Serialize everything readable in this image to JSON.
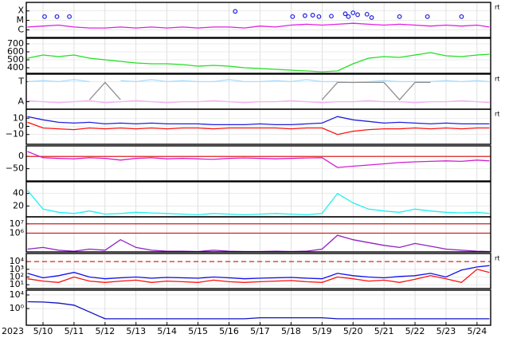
{
  "chart_data": {
    "type": "line",
    "x_label": "2023",
    "xlim": [
      9.46,
      24.44
    ],
    "xticks": [
      {
        "value": 10,
        "label": "5/10"
      },
      {
        "value": 11,
        "label": "5/11"
      },
      {
        "value": 12,
        "label": "5/12"
      },
      {
        "value": 13,
        "label": "5/13"
      },
      {
        "value": 14,
        "label": "5/14"
      },
      {
        "value": 15,
        "label": "5/15"
      },
      {
        "value": 16,
        "label": "5/16"
      },
      {
        "value": 17,
        "label": "5/17"
      },
      {
        "value": 18,
        "label": "5/18"
      },
      {
        "value": 19,
        "label": "5/19"
      },
      {
        "value": 20,
        "label": "5/20"
      },
      {
        "value": 21,
        "label": "5/21"
      },
      {
        "value": 22,
        "label": "5/22"
      },
      {
        "value": 23,
        "label": "5/23"
      },
      {
        "value": 24,
        "label": "5/24"
      }
    ],
    "grid": true,
    "x": [
      9.5,
      10,
      10.5,
      11,
      11.5,
      12,
      12.5,
      13,
      13.5,
      14,
      14.5,
      15,
      15.5,
      16,
      16.5,
      17,
      17.5,
      18,
      18.5,
      19,
      19.5,
      20,
      20.5,
      21,
      21.5,
      22,
      22.5,
      23,
      23.5,
      24,
      24.4
    ],
    "panels": [
      {
        "ylim": [
          0.2,
          3.9
        ],
        "yticks": [
          {
            "value": 3,
            "label": "X"
          },
          {
            "value": 2,
            "label": "M"
          },
          {
            "value": 1,
            "label": "C"
          }
        ],
        "right_label": "rt",
        "series": [
          {
            "color": "#e020e0",
            "values": [
              1.3,
              1.4,
              1.5,
              1.3,
              1.2,
              1.2,
              1.3,
              1.2,
              1.3,
              1.2,
              1.3,
              1.2,
              1.3,
              1.3,
              1.2,
              1.4,
              1.3,
              1.5,
              1.6,
              1.5,
              1.6,
              1.7,
              1.6,
              1.5,
              1.6,
              1.5,
              1.4,
              1.5,
              1.4,
              1.5,
              1.3
            ]
          },
          {
            "type": "scatter",
            "color": "#2020e0",
            "x": [
              10.05,
              10.45,
              10.85,
              16.2,
              18.05,
              18.45,
              18.7,
              18.9,
              19.3,
              19.75,
              19.85,
              20.0,
              20.15,
              20.45,
              20.6,
              21.5,
              22.4,
              23.5
            ],
            "values": [
              2.4,
              2.4,
              2.4,
              2.95,
              2.4,
              2.5,
              2.55,
              2.4,
              2.45,
              2.7,
              2.4,
              2.8,
              2.6,
              2.65,
              2.3,
              2.4,
              2.4,
              2.4
            ]
          }
        ]
      },
      {
        "ylim": [
          330,
          770
        ],
        "yticks": [
          700,
          600,
          500,
          400
        ],
        "series": [
          {
            "color": "#20e020",
            "values": [
              520,
              560,
              540,
              560,
              520,
              500,
              480,
              460,
              450,
              450,
              440,
              420,
              430,
              420,
              400,
              390,
              380,
              370,
              360,
              350,
              360,
              450,
              520,
              540,
              530,
              560,
              590,
              550,
              540,
              560,
              570
            ]
          }
        ]
      },
      {
        "ylim": [
          -0.375,
          1.375
        ],
        "yticks": [
          {
            "value": 1,
            "label": "T"
          },
          {
            "value": 0,
            "label": "A"
          }
        ],
        "right_label": "rt",
        "series": [
          {
            "color": "#a8dcff",
            "values": [
              1.0,
              1.05,
              1.0,
              1.1,
              1.0,
              null,
              1.05,
              1.0,
              1.1,
              1.0,
              1.05,
              1.0,
              1.0,
              1.1,
              1.0,
              1.0,
              1.05,
              1.0,
              1.1,
              1.0,
              1.0,
              0.95,
              1.0,
              1.05,
              1.0,
              1.0,
              1.0,
              1.05,
              1.0,
              1.05,
              1.0
            ]
          },
          {
            "color": "#f4b0f0",
            "values": [
              0.05,
              0.0,
              -0.05,
              0.0,
              0.05,
              -0.05,
              0.0,
              0.05,
              0.0,
              -0.05,
              0.0,
              0.0,
              0.05,
              0.0,
              -0.05,
              0.0,
              0.0,
              0.05,
              0.0,
              -0.05,
              0.0,
              0.0,
              0.05,
              0.0,
              0.0,
              -0.05,
              0.0,
              0.0,
              0.05,
              0.0,
              -0.05
            ]
          },
          {
            "color": "#909090",
            "values": [
              null,
              null,
              null,
              null,
              0.1,
              0.96,
              0.1,
              null,
              null,
              null,
              null,
              null,
              null,
              null,
              null,
              null,
              null,
              null,
              null,
              0.1,
              0.96,
              0.96,
              0.96,
              0.96,
              0.1,
              0.96,
              0.96,
              null,
              null,
              null,
              null
            ]
          }
        ]
      },
      {
        "ylim": [
          -22,
          21
        ],
        "yticks": [
          10,
          0,
          {
            "value": -10,
            "label": "−10"
          }
        ],
        "right_label": "rt",
        "series": [
          {
            "color": "#2020e0",
            "values": [
              12,
              8,
              5,
              4,
              5,
              3,
              4,
              3,
              4,
              3,
              3,
              3,
              2,
              2,
              2,
              3,
              2,
              2,
              3,
              4,
              12,
              8,
              6,
              4,
              5,
              4,
              3,
              4,
              3,
              3,
              3
            ]
          },
          {
            "color": "#ff1010",
            "values": [
              5,
              -2,
              -3,
              -4,
              -2,
              -3,
              -2,
              -3,
              -2,
              -3,
              -2,
              -2,
              -3,
              -2,
              -2,
              -2,
              -2,
              -3,
              -2,
              -2,
              -10,
              -6,
              -4,
              -3,
              -3,
              -2,
              -3,
              -2,
              -3,
              -2,
              -2
            ]
          }
        ]
      },
      {
        "ylim": [
          -100,
          43
        ],
        "yticks": [
          0,
          {
            "value": -50,
            "label": "−50"
          }
        ],
        "hlines": [
          0
        ],
        "hline_color": "#e02020",
        "series": [
          {
            "color": "#d020d0",
            "values": [
              20,
              -5,
              -8,
              -10,
              -5,
              -8,
              -15,
              -8,
              -5,
              -10,
              -8,
              -10,
              -12,
              -8,
              -6,
              -8,
              -10,
              -8,
              -6,
              -5,
              -45,
              -40,
              -35,
              -30,
              -25,
              -22,
              -20,
              -18,
              -20,
              -15,
              -18
            ]
          }
        ]
      },
      {
        "ylim": [
          2.7,
          58.7
        ],
        "yticks": [
          40,
          20
        ],
        "series": [
          {
            "color": "#20f0f0",
            "values": [
              45,
              15,
              10,
              8,
              12,
              7,
              8,
              10,
              9,
              8,
              7,
              6,
              8,
              7,
              6,
              7,
              8,
              7,
              6,
              8,
              40,
              25,
              15,
              12,
              10,
              15,
              12,
              10,
              9,
              10,
              8
            ]
          }
        ]
      },
      {
        "log": true,
        "ylim": [
          10000,
          56000000
        ],
        "yticks": [
          {
            "value": 10000000,
            "label": "10⁷"
          },
          {
            "value": 1000000,
            "label": "10⁶"
          }
        ],
        "hlines": [
          10000000,
          1000000
        ],
        "hline_color": "#d02020",
        "series": [
          {
            "color": "#9020c0",
            "values": [
              20000,
              30000,
              15000,
              12000,
              20000,
              15000,
              200000,
              30000,
              15000,
              12000,
              12000,
              11000,
              15000,
              12000,
              11000,
              11000,
              12000,
              11000,
              12000,
              20000,
              600000,
              200000,
              100000,
              50000,
              30000,
              80000,
              40000,
              20000,
              15000,
              12000,
              11000
            ]
          }
        ]
      },
      {
        "log": true,
        "ylim": [
          3.2,
          112000
        ],
        "yticks": [
          {
            "value": 10000,
            "label": "10⁴"
          },
          {
            "value": 1000,
            "label": "10³"
          },
          {
            "value": 100,
            "label": "10²"
          },
          {
            "value": 10,
            "label": "10¹"
          }
        ],
        "hlines": [
          10000
        ],
        "hline_color": "#e02020",
        "hline_dash": true,
        "right_label": "rt",
        "series": [
          {
            "color": "#1010f0",
            "values": [
              300,
              80,
              150,
              400,
              100,
              60,
              80,
              100,
              70,
              90,
              80,
              70,
              100,
              80,
              60,
              70,
              80,
              90,
              70,
              60,
              300,
              150,
              100,
              80,
              120,
              150,
              300,
              100,
              800,
              2000,
              3000
            ]
          },
          {
            "color": "#ff1010",
            "values": [
              60,
              30,
              20,
              100,
              30,
              20,
              30,
              40,
              20,
              30,
              25,
              20,
              40,
              25,
              20,
              25,
              30,
              35,
              25,
              20,
              100,
              60,
              30,
              40,
              20,
              50,
              150,
              60,
              20,
              1000,
              400
            ]
          }
        ]
      },
      {
        "log": true,
        "ylim": [
          1.26e-05,
          251000
        ],
        "yticks": [
          {
            "value": 10000,
            "label": "10⁴"
          },
          {
            "value": 1,
            "label": "10⁰"
          }
        ],
        "series": [
          {
            "color": "#1010c0",
            "values": [
              100,
              80,
              40,
              10,
              0.1,
              0.001,
              0.001,
              0.001,
              0.001,
              0.001,
              0.001,
              0.001,
              0.001,
              0.001,
              0.001,
              0.002,
              0.002,
              0.002,
              0.002,
              0.002,
              0.001,
              0.001,
              0.001,
              0.001,
              0.001,
              0.001,
              0.001,
              0.001,
              0.001,
              0.001,
              0.001
            ]
          }
        ]
      }
    ]
  }
}
